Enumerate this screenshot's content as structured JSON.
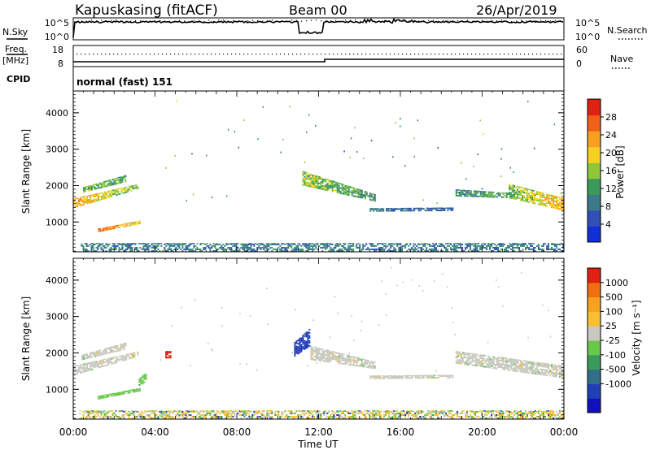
{
  "header": {
    "station": "Kapuskasing (fitACF)",
    "beam": "Beam 00",
    "date": "26/Apr/2019"
  },
  "summary": {
    "nsky_label": "N.Sky",
    "nsearch_label": "N.Search",
    "freq_label_1": "Freq.",
    "freq_label_2": "[MHz]",
    "nave_label": "Nave",
    "cpid_label": "CPID",
    "cpid_value": "normal (fast) 151",
    "noise_ticks": [
      "10^5",
      "10^0"
    ],
    "freq_ticks": [
      "18",
      "8"
    ],
    "nave_ticks": [
      "60",
      "0"
    ]
  },
  "colors": {
    "power": [
      "#1030d8",
      "#3050b8",
      "#3a7a8a",
      "#3a9a5a",
      "#8ec83a",
      "#f8d020",
      "#f8a020",
      "#f06018",
      "#e02010"
    ],
    "velocity": [
      "#1010c0",
      "#2040b8",
      "#30708a",
      "#3a9a5a",
      "#68c84a",
      "#c8c8c0",
      "#f8c030",
      "#f8a020",
      "#f07010",
      "#e02010"
    ]
  },
  "chart_data": [
    {
      "type": "heatmap",
      "name": "power",
      "xlabel": "Time UT",
      "ylabel": "Slant Range [km]",
      "xlim": [
        0,
        24
      ],
      "ylim": [
        180,
        4600
      ],
      "y_ticks": [
        1000,
        2000,
        3000,
        4000
      ],
      "colorbar": {
        "label": "Power [dB]",
        "ticks": [
          4,
          8,
          12,
          16,
          20,
          24,
          28
        ],
        "range": [
          0,
          32
        ]
      },
      "echo_bands": [
        {
          "t0": 0.0,
          "t1": 3.2,
          "r0a": 1380,
          "r1a": 1650,
          "r0b": 1900,
          "r1b": 2050,
          "v0": 22,
          "v1": 14
        },
        {
          "t0": 0.4,
          "t1": 2.6,
          "r0a": 1800,
          "r1a": 1950,
          "r0b": 2100,
          "r1b": 2300,
          "v0": 15,
          "v1": 12
        },
        {
          "t0": 1.2,
          "t1": 3.3,
          "r0a": 720,
          "r1a": 820,
          "r0b": 950,
          "r1b": 1050,
          "v0": 26,
          "v1": 18
        },
        {
          "t0": 11.2,
          "t1": 14.8,
          "r0a": 2000,
          "r1a": 2400,
          "r0b": 1550,
          "r1b": 1750,
          "v0": 17,
          "v1": 11
        },
        {
          "t0": 14.5,
          "t1": 18.6,
          "r0a": 1280,
          "r1a": 1380,
          "r0b": 1300,
          "r1b": 1400,
          "v0": 9,
          "v1": 7
        },
        {
          "t0": 18.7,
          "t1": 21.4,
          "r0a": 1700,
          "r1a": 1900,
          "r0b": 1650,
          "r1b": 1800,
          "v0": 10,
          "v1": 13
        },
        {
          "t0": 21.3,
          "t1": 24.0,
          "r0a": 1650,
          "r1a": 2050,
          "r0b": 1300,
          "r1b": 1650,
          "v0": 14,
          "v1": 22
        },
        {
          "t0": 0.3,
          "t1": 24.0,
          "r0a": 180,
          "r1a": 420,
          "r0b": 180,
          "r1b": 420,
          "v0": 9,
          "v1": 9
        }
      ]
    },
    {
      "type": "heatmap",
      "name": "velocity",
      "xlabel": "Time UT",
      "ylabel": "Slant Range [km]",
      "xlim": [
        0,
        24
      ],
      "ylim": [
        180,
        4600
      ],
      "y_ticks": [
        1000,
        2000,
        3000,
        4000
      ],
      "x_ticks": [
        "00:00",
        "04:00",
        "08:00",
        "12:00",
        "16:00",
        "20:00",
        "00:00"
      ],
      "colorbar": {
        "label": "Velocity [m s⁻¹]",
        "ticks": [
          "1000",
          "500",
          "100",
          "25",
          "-25",
          "-100",
          "-500",
          "-1000"
        ]
      },
      "echo_bands": [
        {
          "t0": 0.0,
          "t1": 3.2,
          "r0a": 1380,
          "r1a": 1650,
          "r0b": 1900,
          "r1b": 2050,
          "cls": 5
        },
        {
          "t0": 0.4,
          "t1": 2.6,
          "r0a": 1800,
          "r1a": 1950,
          "r0b": 2100,
          "r1b": 2300,
          "cls": 5
        },
        {
          "t0": 1.2,
          "t1": 3.3,
          "r0a": 720,
          "r1a": 820,
          "r0b": 950,
          "r1b": 1050,
          "cls": 4
        },
        {
          "t0": 3.2,
          "t1": 3.6,
          "r0a": 1050,
          "r1a": 1300,
          "r0b": 1250,
          "r1b": 1500,
          "cls": 4
        },
        {
          "t0": 4.5,
          "t1": 4.8,
          "r0a": 1850,
          "r1a": 2050,
          "r0b": 1850,
          "r1b": 2050,
          "cls": 9
        },
        {
          "t0": 10.8,
          "t1": 11.6,
          "r0a": 1900,
          "r1a": 2300,
          "r0b": 2200,
          "r1b": 2700,
          "cls": 1
        },
        {
          "t0": 11.6,
          "t1": 14.8,
          "r0a": 1800,
          "r1a": 2200,
          "r0b": 1550,
          "r1b": 1750,
          "cls": 5
        },
        {
          "t0": 14.5,
          "t1": 18.6,
          "r0a": 1280,
          "r1a": 1380,
          "r0b": 1300,
          "r1b": 1400,
          "cls": 5
        },
        {
          "t0": 18.7,
          "t1": 24.0,
          "r0a": 1700,
          "r1a": 2050,
          "r0b": 1300,
          "r1b": 1650,
          "cls": 5
        },
        {
          "t0": 0.3,
          "t1": 24.0,
          "r0a": 180,
          "r1a": 420,
          "r0b": 180,
          "r1b": 420,
          "cls": 6
        }
      ]
    }
  ]
}
